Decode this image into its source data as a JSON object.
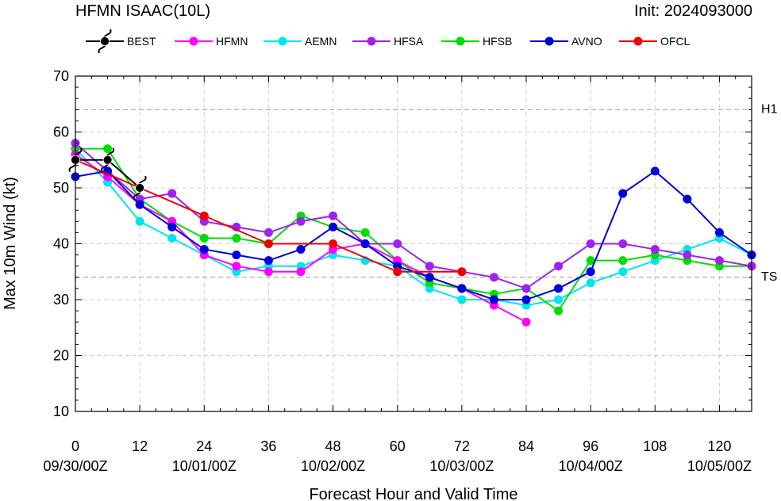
{
  "header": {
    "title": "HFMN ISAAC(10L)",
    "init": "Init: 2024093000"
  },
  "chart_data": {
    "type": "line",
    "ylabel": "Max 10m Wind (kt)",
    "xlabel": "Forecast Hour and Valid Time",
    "xlim": [
      0,
      126
    ],
    "ylim": [
      10,
      70
    ],
    "x_ticks": [
      0,
      12,
      24,
      36,
      48,
      60,
      72,
      84,
      96,
      108,
      120
    ],
    "y_ticks": [
      10,
      20,
      30,
      40,
      50,
      60,
      70
    ],
    "date_labels": [
      {
        "x": 0,
        "label": "09/30/00Z"
      },
      {
        "x": 24,
        "label": "10/01/00Z"
      },
      {
        "x": 48,
        "label": "10/02/00Z"
      },
      {
        "x": 72,
        "label": "10/03/00Z"
      },
      {
        "x": 96,
        "label": "10/04/00Z"
      },
      {
        "x": 120,
        "label": "10/05/00Z"
      }
    ],
    "thresholds": [
      {
        "label": "H1",
        "value": 64
      },
      {
        "label": "TS",
        "value": 34
      }
    ],
    "grid": true,
    "legend_position": "top",
    "series": [
      {
        "name": "BEST",
        "color": "#000000",
        "marker": "hurricane-symbol",
        "points": [
          [
            0,
            55
          ],
          [
            6,
            55
          ],
          [
            12,
            50
          ]
        ]
      },
      {
        "name": "HFMN",
        "color": "#ff00ff",
        "points": [
          [
            0,
            56
          ],
          [
            6,
            52
          ],
          [
            12,
            47
          ],
          [
            18,
            44
          ],
          [
            24,
            38
          ],
          [
            30,
            36
          ],
          [
            36,
            35
          ],
          [
            42,
            35
          ],
          [
            48,
            39
          ],
          [
            54,
            40
          ],
          [
            60,
            37
          ],
          [
            66,
            34
          ],
          [
            72,
            32
          ],
          [
            78,
            29
          ],
          [
            84,
            26
          ]
        ]
      },
      {
        "name": "AEMN",
        "color": "#00e5ee",
        "points": [
          [
            0,
            57
          ],
          [
            6,
            51
          ],
          [
            12,
            44
          ],
          [
            18,
            41
          ],
          [
            24,
            38
          ],
          [
            30,
            35
          ],
          [
            36,
            36
          ],
          [
            42,
            36
          ],
          [
            48,
            38
          ],
          [
            54,
            37
          ],
          [
            60,
            36
          ],
          [
            66,
            32
          ],
          [
            72,
            30
          ],
          [
            78,
            30
          ],
          [
            84,
            29
          ],
          [
            90,
            30
          ],
          [
            96,
            33
          ],
          [
            102,
            35
          ],
          [
            108,
            37
          ],
          [
            114,
            39
          ],
          [
            120,
            41
          ],
          [
            126,
            38
          ]
        ]
      },
      {
        "name": "HFSA",
        "color": "#a020f0",
        "points": [
          [
            0,
            58
          ],
          [
            6,
            53
          ],
          [
            12,
            48
          ],
          [
            18,
            49
          ],
          [
            24,
            44
          ],
          [
            30,
            43
          ],
          [
            36,
            42
          ],
          [
            42,
            44
          ],
          [
            48,
            45
          ],
          [
            54,
            40
          ],
          [
            60,
            40
          ],
          [
            66,
            36
          ],
          [
            72,
            35
          ],
          [
            78,
            34
          ],
          [
            84,
            32
          ],
          [
            90,
            36
          ],
          [
            96,
            40
          ],
          [
            102,
            40
          ],
          [
            108,
            39
          ],
          [
            114,
            38
          ],
          [
            120,
            37
          ],
          [
            126,
            36
          ]
        ]
      },
      {
        "name": "HFSB",
        "color": "#00dd00",
        "points": [
          [
            0,
            57
          ],
          [
            6,
            57
          ],
          [
            12,
            48
          ],
          [
            18,
            44
          ],
          [
            24,
            41
          ],
          [
            30,
            41
          ],
          [
            36,
            40
          ],
          [
            42,
            45
          ],
          [
            48,
            43
          ],
          [
            54,
            42
          ],
          [
            60,
            37
          ],
          [
            66,
            33
          ],
          [
            72,
            32
          ],
          [
            78,
            31
          ],
          [
            84,
            32
          ],
          [
            90,
            28
          ],
          [
            96,
            37
          ],
          [
            102,
            37
          ],
          [
            108,
            38
          ],
          [
            114,
            37
          ],
          [
            120,
            36
          ],
          [
            126,
            36
          ]
        ]
      },
      {
        "name": "AVNO",
        "color": "#0000dd",
        "points": [
          [
            0,
            52
          ],
          [
            6,
            53
          ],
          [
            12,
            47
          ],
          [
            18,
            43
          ],
          [
            24,
            39
          ],
          [
            30,
            38
          ],
          [
            36,
            37
          ],
          [
            42,
            39
          ],
          [
            48,
            43
          ],
          [
            54,
            40
          ],
          [
            60,
            36
          ],
          [
            66,
            34
          ],
          [
            72,
            32
          ],
          [
            78,
            30
          ],
          [
            84,
            30
          ],
          [
            90,
            32
          ],
          [
            96,
            35
          ],
          [
            102,
            49
          ],
          [
            108,
            53
          ],
          [
            114,
            48
          ],
          [
            120,
            42
          ],
          [
            126,
            38
          ]
        ]
      },
      {
        "name": "OFCL",
        "color": "#ee0000",
        "points": [
          [
            0,
            55
          ],
          [
            12,
            50
          ],
          [
            24,
            45
          ],
          [
            36,
            40
          ],
          [
            48,
            40
          ],
          [
            60,
            35
          ],
          [
            72,
            35
          ]
        ]
      }
    ]
  }
}
